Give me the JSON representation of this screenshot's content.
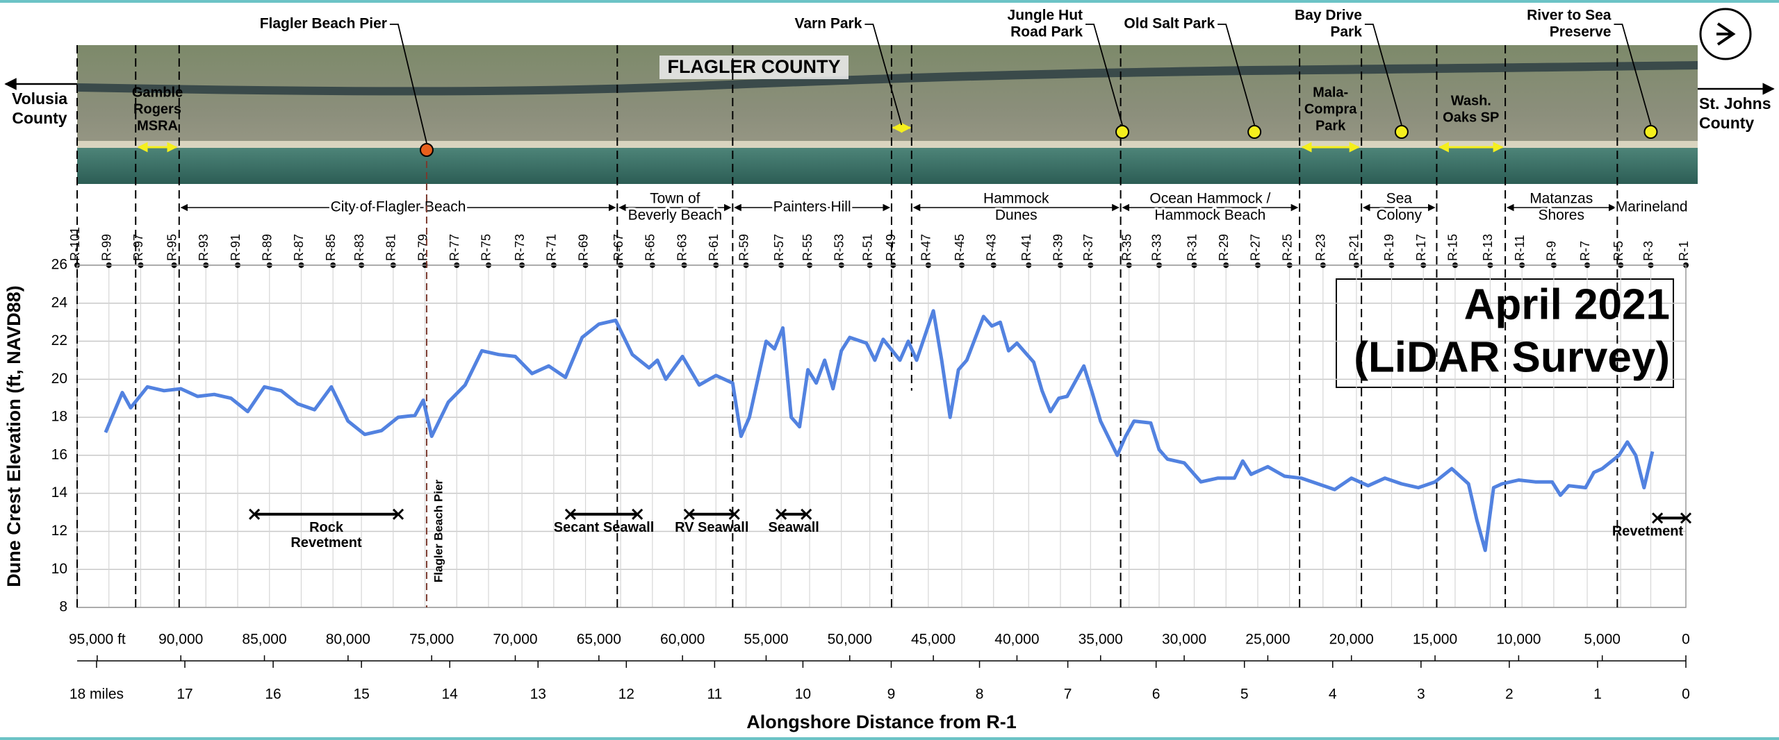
{
  "chart_data": {
    "type": "line",
    "x_axis_label": "Alongshore Distance from R-1",
    "y_axis_label": "Dune Crest Elevation (ft, NAVD88)",
    "color": "#5282e0",
    "grid": true,
    "xlim": [
      96200,
      0
    ],
    "xticks": [
      {
        "value": 95000,
        "label": "95,000 ft"
      },
      {
        "value": 90000,
        "label": "90,000"
      },
      {
        "value": 85000,
        "label": "85,000"
      },
      {
        "value": 80000,
        "label": "80,000"
      },
      {
        "value": 75000,
        "label": "75,000"
      },
      {
        "value": 70000,
        "label": "70,000"
      },
      {
        "value": 65000,
        "label": "65,000"
      },
      {
        "value": 60000,
        "label": "60,000"
      },
      {
        "value": 55000,
        "label": "55,000"
      },
      {
        "value": 50000,
        "label": "50,000"
      },
      {
        "value": 45000,
        "label": "45,000"
      },
      {
        "value": 40000,
        "label": "40,000"
      },
      {
        "value": 35000,
        "label": "35,000"
      },
      {
        "value": 30000,
        "label": "30,000"
      },
      {
        "value": 25000,
        "label": "25,000"
      },
      {
        "value": 20000,
        "label": "20,000"
      },
      {
        "value": 15000,
        "label": "15,000"
      },
      {
        "value": 10000,
        "label": "10,000"
      },
      {
        "value": 5000,
        "label": "5,000"
      },
      0
    ],
    "x2lim": [
      18.22,
      0
    ],
    "x2ticks": [
      {
        "value": 18,
        "label": "18 miles"
      },
      17,
      16,
      15,
      14,
      13,
      12,
      11,
      10,
      9,
      8,
      7,
      6,
      5,
      4,
      3,
      2,
      1,
      0
    ],
    "ylim": [
      8,
      26
    ],
    "yticks": [
      8,
      10,
      12,
      14,
      16,
      18,
      20,
      22,
      24,
      26
    ],
    "x": [
      94500,
      93500,
      93000,
      92000,
      91000,
      90000,
      89000,
      88000,
      87000,
      86000,
      85000,
      84000,
      83000,
      82000,
      81000,
      80000,
      79000,
      78000,
      77000,
      76000,
      75500,
      75000,
      74000,
      73000,
      72000,
      71000,
      70000,
      69000,
      68000,
      67000,
      66000,
      65000,
      64000,
      63000,
      62000,
      61500,
      61000,
      60000,
      59000,
      58000,
      57000,
      56500,
      56000,
      55000,
      54500,
      54000,
      53500,
      53000,
      52500,
      52000,
      51500,
      51000,
      50500,
      50000,
      49000,
      48500,
      48000,
      47000,
      46500,
      46000,
      45000,
      44500,
      44000,
      43500,
      43000,
      42000,
      41500,
      41000,
      40500,
      40000,
      39000,
      38500,
      38000,
      37500,
      37000,
      36000,
      35500,
      35000,
      34000,
      33500,
      33000,
      32000,
      31500,
      31000,
      30000,
      29000,
      28000,
      27000,
      26500,
      26000,
      25000,
      24000,
      23000,
      22000,
      21000,
      20000,
      19000,
      18000,
      17000,
      16000,
      15000,
      14000,
      13000,
      12500,
      12000,
      11500,
      11000,
      10000,
      9000,
      8000,
      7500,
      7000,
      6000,
      5500,
      5000,
      4000,
      3500,
      3000,
      2500,
      2000
    ],
    "values": [
      17.2,
      19.3,
      18.5,
      19.6,
      19.4,
      19.5,
      19.1,
      19.2,
      19.0,
      18.3,
      19.6,
      19.4,
      18.7,
      18.4,
      19.6,
      17.8,
      17.1,
      17.3,
      18.0,
      18.1,
      18.9,
      17.0,
      18.8,
      19.7,
      21.5,
      21.3,
      21.2,
      20.3,
      20.7,
      20.1,
      22.2,
      22.9,
      23.1,
      21.3,
      20.6,
      21.0,
      20.0,
      21.2,
      19.7,
      20.2,
      19.8,
      17.0,
      18.0,
      22.0,
      21.6,
      22.7,
      18.0,
      17.5,
      20.5,
      19.8,
      21.0,
      19.5,
      21.5,
      22.2,
      21.9,
      21.0,
      22.1,
      21.0,
      22.0,
      21.0,
      23.6,
      21.0,
      18.0,
      20.5,
      21.0,
      23.3,
      22.8,
      23.0,
      21.5,
      21.9,
      20.9,
      19.4,
      18.3,
      19.0,
      19.1,
      20.7,
      19.3,
      17.8,
      16.0,
      17.0,
      17.8,
      17.7,
      16.3,
      15.8,
      15.6,
      14.6,
      14.8,
      14.8,
      15.7,
      15.0,
      15.4,
      14.9,
      14.8,
      14.5,
      14.2,
      14.8,
      14.4,
      14.8,
      14.5,
      14.3,
      14.6,
      15.3,
      14.5,
      12.6,
      11.0,
      14.3,
      14.5,
      14.7,
      14.6,
      14.6,
      13.9,
      14.4,
      14.3,
      15.1,
      15.3,
      16.0,
      16.7,
      16.0,
      14.3,
      16.2
    ],
    "annotation": [
      "April 2021",
      "(LiDAR Survey)"
    ],
    "monuments": {
      "labels": [
        "R-101",
        "R-99",
        "R-97",
        "R-95",
        "R-93",
        "R-91",
        "R-89",
        "R-87",
        "R-85",
        "R-83",
        "R-81",
        "R-79",
        "R-77",
        "R-75",
        "R-73",
        "R-71",
        "R-69",
        "R-67",
        "R-65",
        "R-63",
        "R-61",
        "R-59",
        "R-57",
        "R-55",
        "R-53",
        "R-51",
        "R-49",
        "R-47",
        "R-45",
        "R-43",
        "R-41",
        "R-39",
        "R-37",
        "R-35",
        "R-33",
        "R-31",
        "R-29",
        "R-27",
        "R-25",
        "R-23",
        "R-21",
        "R-19",
        "R-17",
        "R-15",
        "R-13",
        "R-11",
        "R-9",
        "R-7",
        "R-5",
        "R-3",
        "R-1"
      ],
      "x": [
        96200,
        94300,
        92400,
        90400,
        88500,
        86600,
        84700,
        82800,
        80900,
        79200,
        77300,
        75400,
        73500,
        71600,
        69600,
        67700,
        65800,
        63700,
        61800,
        59900,
        58000,
        56200,
        54100,
        52400,
        50500,
        48800,
        47400,
        45300,
        43300,
        41400,
        39300,
        37400,
        35600,
        33300,
        31500,
        29400,
        27500,
        25600,
        23700,
        21700,
        19700,
        17600,
        15700,
        13800,
        11700,
        9800,
        7900,
        5900,
        3900,
        2100,
        0
      ]
    },
    "boundaries": [
      96200,
      92700,
      90100,
      63900,
      57000,
      47500,
      33800,
      23100,
      19400,
      14900,
      10800,
      4100
    ],
    "partial_boundaries": [
      {
        "x": 46300,
        "down_to": 19.4
      }
    ],
    "zones": [
      {
        "label": [
          "City of Flagler Beach"
        ],
        "from": 90100,
        "to": 63900
      },
      {
        "label": [
          "Town of",
          "Beverly Beach"
        ],
        "from": 63900,
        "to": 57000
      },
      {
        "label": [
          "Painters Hill"
        ],
        "from": 57000,
        "to": 47500
      },
      {
        "label": [
          "Hammock",
          "Dunes"
        ],
        "from": 46300,
        "to": 33800
      },
      {
        "label": [
          "Ocean Hammock /",
          "Hammock Beach"
        ],
        "from": 33800,
        "to": 23100
      },
      {
        "label": [
          "Sea",
          "Colony"
        ],
        "from": 19400,
        "to": 14900
      },
      {
        "label": [
          "Matanzas",
          "Shores"
        ],
        "from": 10800,
        "to": 4100
      },
      {
        "label": [
          "Marineland"
        ],
        "from": 4100,
        "to": 0
      }
    ],
    "armoring": [
      {
        "label": [
          "Rock",
          "Revetment"
        ],
        "from": 85600,
        "to": 77000,
        "y": 12.9
      },
      {
        "label": [
          "Secant Seawall"
        ],
        "from": 66700,
        "to": 62700,
        "y": 12.9
      },
      {
        "label": [
          "RV Seawall"
        ],
        "from": 59600,
        "to": 56900,
        "y": 12.9
      },
      {
        "label": [
          "Seawall"
        ],
        "from": 54100,
        "to": 52600,
        "y": 12.9
      },
      {
        "label": [
          "Revetment"
        ],
        "from": 1700,
        "to": 0,
        "y": 12.7
      }
    ],
    "pier": {
      "label": "Flagler Beach Pier",
      "x": 75300,
      "color": "#7a3a2e"
    },
    "map": {
      "county": "FLAGLER COUNTY",
      "left_county": [
        "Volusia",
        "County"
      ],
      "right_county": [
        "St. Johns",
        "County"
      ],
      "sites": [
        {
          "label": [
            "Flagler Beach Pier"
          ],
          "x": 75300,
          "color": "#e8601c"
        },
        {
          "label": [
            "Varn Park"
          ],
          "x": 47500,
          "to": 46300,
          "color": "#f5ef1d"
        },
        {
          "label": [
            "Jungle Hut",
            "Road Park"
          ],
          "x": 33700,
          "color": "#f5ef1d"
        },
        {
          "label": [
            "Old Salt Park"
          ],
          "x": 25800,
          "color": "#f5ef1d"
        },
        {
          "label": [
            "Bay Drive",
            "Park"
          ],
          "x": 17000,
          "color": "#f5ef1d"
        },
        {
          "label": [
            "River to Sea",
            "Preserve"
          ],
          "x": 2100,
          "color": "#f5ef1d"
        }
      ],
      "areas": [
        {
          "label": [
            "Gamble",
            "Rogers",
            "MSRA"
          ],
          "from": 92700,
          "to": 90100
        },
        {
          "label": [
            "Mala-",
            "Compra",
            "Park"
          ],
          "from": 23100,
          "to": 19400
        },
        {
          "label": [
            "Wash.",
            "Oaks SP"
          ],
          "from": 14900,
          "to": 10800
        }
      ],
      "color": "#f5ef1d"
    }
  }
}
